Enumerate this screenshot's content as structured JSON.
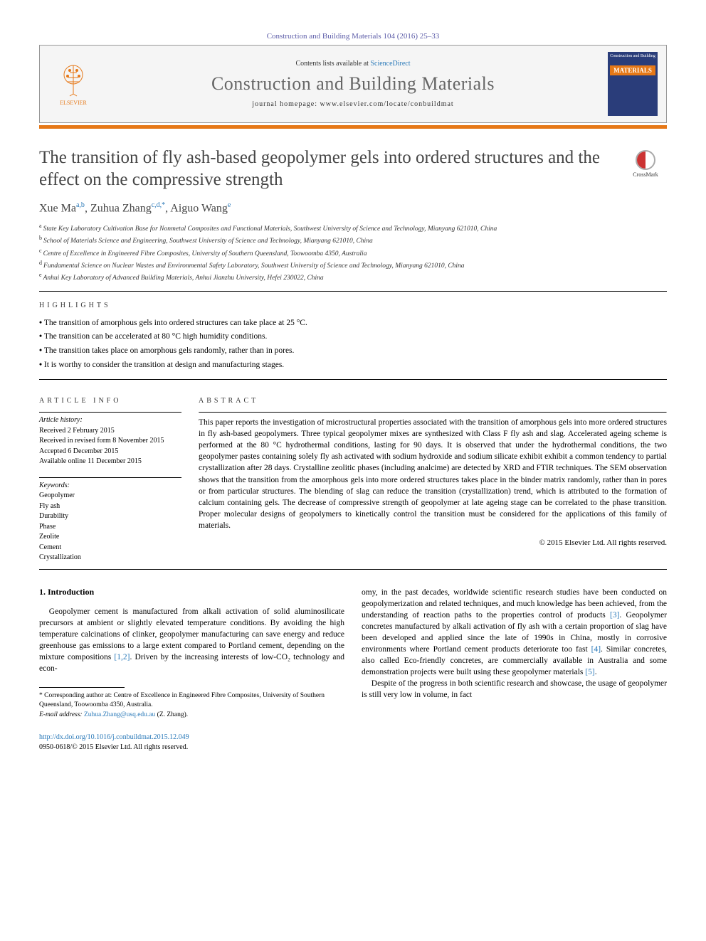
{
  "header": {
    "journal_ref": "Construction and Building Materials 104 (2016) 25–33",
    "contents_prefix": "Contents lists available at ",
    "contents_link": "ScienceDirect",
    "journal_name": "Construction and Building Materials",
    "homepage_prefix": "journal homepage: ",
    "homepage_url": "www.elsevier.com/locate/conbuildmat",
    "publisher_label": "ELSEVIER",
    "cover_top": "Construction and Building",
    "cover_mats": "MATERIALS",
    "crossmark_label": "CrossMark",
    "colors": {
      "orange": "#e67817",
      "blue": "#2878b8",
      "cover_bg": "#2a3d7a",
      "title_gray": "#464646"
    }
  },
  "article": {
    "title": "The transition of fly ash-based geopolymer gels into ordered structures and the effect on the compressive strength",
    "authors_html": "Xue Ma<sup class='sup'>a,b</sup>, Zuhua Zhang<sup class='sup'>c,d,*</sup>, Aiguo Wang<sup class='sup'>e</sup>",
    "affiliations": {
      "a": "State Key Laboratory Cultivation Base for Nonmetal Composites and Functional Materials, Southwest University of Science and Technology, Mianyang 621010, China",
      "b": "School of Materials Science and Engineering, Southwest University of Science and Technology, Mianyang 621010, China",
      "c": "Centre of Excellence in Engineered Fibre Composites, University of Southern Queensland, Toowoomba 4350, Australia",
      "d": "Fundamental Science on Nuclear Wastes and Environmental Safety Laboratory, Southwest University of Science and Technology, Mianyang 621010, China",
      "e": "Anhui Key Laboratory of Advanced Building Materials, Anhui Jianzhu University, Hefei 230022, China"
    }
  },
  "highlights": {
    "heading": "HIGHLIGHTS",
    "items": [
      "The transition of amorphous gels into ordered structures can take place at 25 °C.",
      "The transition can be accelerated at 80 °C high humidity conditions.",
      "The transition takes place on amorphous gels randomly, rather than in pores.",
      "It is worthy to consider the transition at design and manufacturing stages."
    ]
  },
  "article_info": {
    "heading": "ARTICLE INFO",
    "history_head": "Article history:",
    "history": [
      "Received 2 February 2015",
      "Received in revised form 8 November 2015",
      "Accepted 6 December 2015",
      "Available online 11 December 2015"
    ],
    "keywords_head": "Keywords:",
    "keywords": [
      "Geopolymer",
      "Fly ash",
      "Durability",
      "Phase",
      "Zeolite",
      "Cement",
      "Crystallization"
    ]
  },
  "abstract": {
    "heading": "ABSTRACT",
    "text": "This paper reports the investigation of microstructural properties associated with the transition of amorphous gels into more ordered structures in fly ash-based geopolymers. Three typical geopolymer mixes are synthesized with Class F fly ash and slag. Accelerated ageing scheme is performed at the 80 °C hydrothermal conditions, lasting for 90 days. It is observed that under the hydrothermal conditions, the two geopolymer pastes containing solely fly ash activated with sodium hydroxide and sodium silicate exhibit exhibit a common tendency to partial crystallization after 28 days. Crystalline zeolitic phases (including analcime) are detected by XRD and FTIR techniques. The SEM observation shows that the transition from the amorphous gels into more ordered structures takes place in the binder matrix randomly, rather than in pores or from particular structures. The blending of slag can reduce the transition (crystallization) trend, which is attributed to the formation of calcium containing gels. The decrease of compressive strength of geopolymer at late ageing stage can be correlated to the phase transition. Proper molecular designs of geopolymers to kinetically control the transition must be considered for the applications of this family of materials.",
    "copyright": "© 2015 Elsevier Ltd. All rights reserved."
  },
  "intro": {
    "heading": "1. Introduction",
    "col1_p1_pre": "Geopolymer cement is manufactured from alkali activation of solid aluminosilicate precursors at ambient or slightly elevated temperature conditions. By avoiding the high temperature calcinations of clinker, geopolymer manufacturing can save energy and reduce greenhouse gas emissions to a large extent compared to Portland cement, depending on the mixture compositions ",
    "col1_p1_cite1": "[1,2]",
    "col1_p1_post": ". Driven by the increasing interests of low-CO₂ technology and econ-",
    "col2_p1_a": "omy, in the past decades, worldwide scientific research studies have been conducted on geopolymerization and related techniques, and much knowledge has been achieved, from the understanding of reaction paths to the properties control of products ",
    "col2_cite3": "[3]",
    "col2_p1_b": ". Geopolymer concretes manufactured by alkali activation of fly ash with a certain proportion of slag have been developed and applied since the late of 1990s in China, mostly in corrosive environments where Portland cement products deteriorate too fast ",
    "col2_cite4": "[4]",
    "col2_p1_c": ". Similar concretes, also called Eco-friendly concretes, are commercially available in Australia and some demonstration projects were built using these geopolymer materials ",
    "col2_cite5": "[5]",
    "col2_p1_d": ".",
    "col2_p2": "Despite of the progress in both scientific research and showcase, the usage of geopolymer is still very low in volume, in fact"
  },
  "footnote": {
    "corr_label": "* Corresponding author at: Centre of Excellence in Engineered Fibre Composites, University of Southern Queensland, Toowoomba 4350, Australia.",
    "email_label": "E-mail address: ",
    "email": "Zuhua.Zhang@usq.edu.au",
    "email_suffix": " (Z. Zhang)."
  },
  "doi": {
    "url": "http://dx.doi.org/10.1016/j.conbuildmat.2015.12.049",
    "issn_line": "0950-0618/© 2015 Elsevier Ltd. All rights reserved."
  }
}
